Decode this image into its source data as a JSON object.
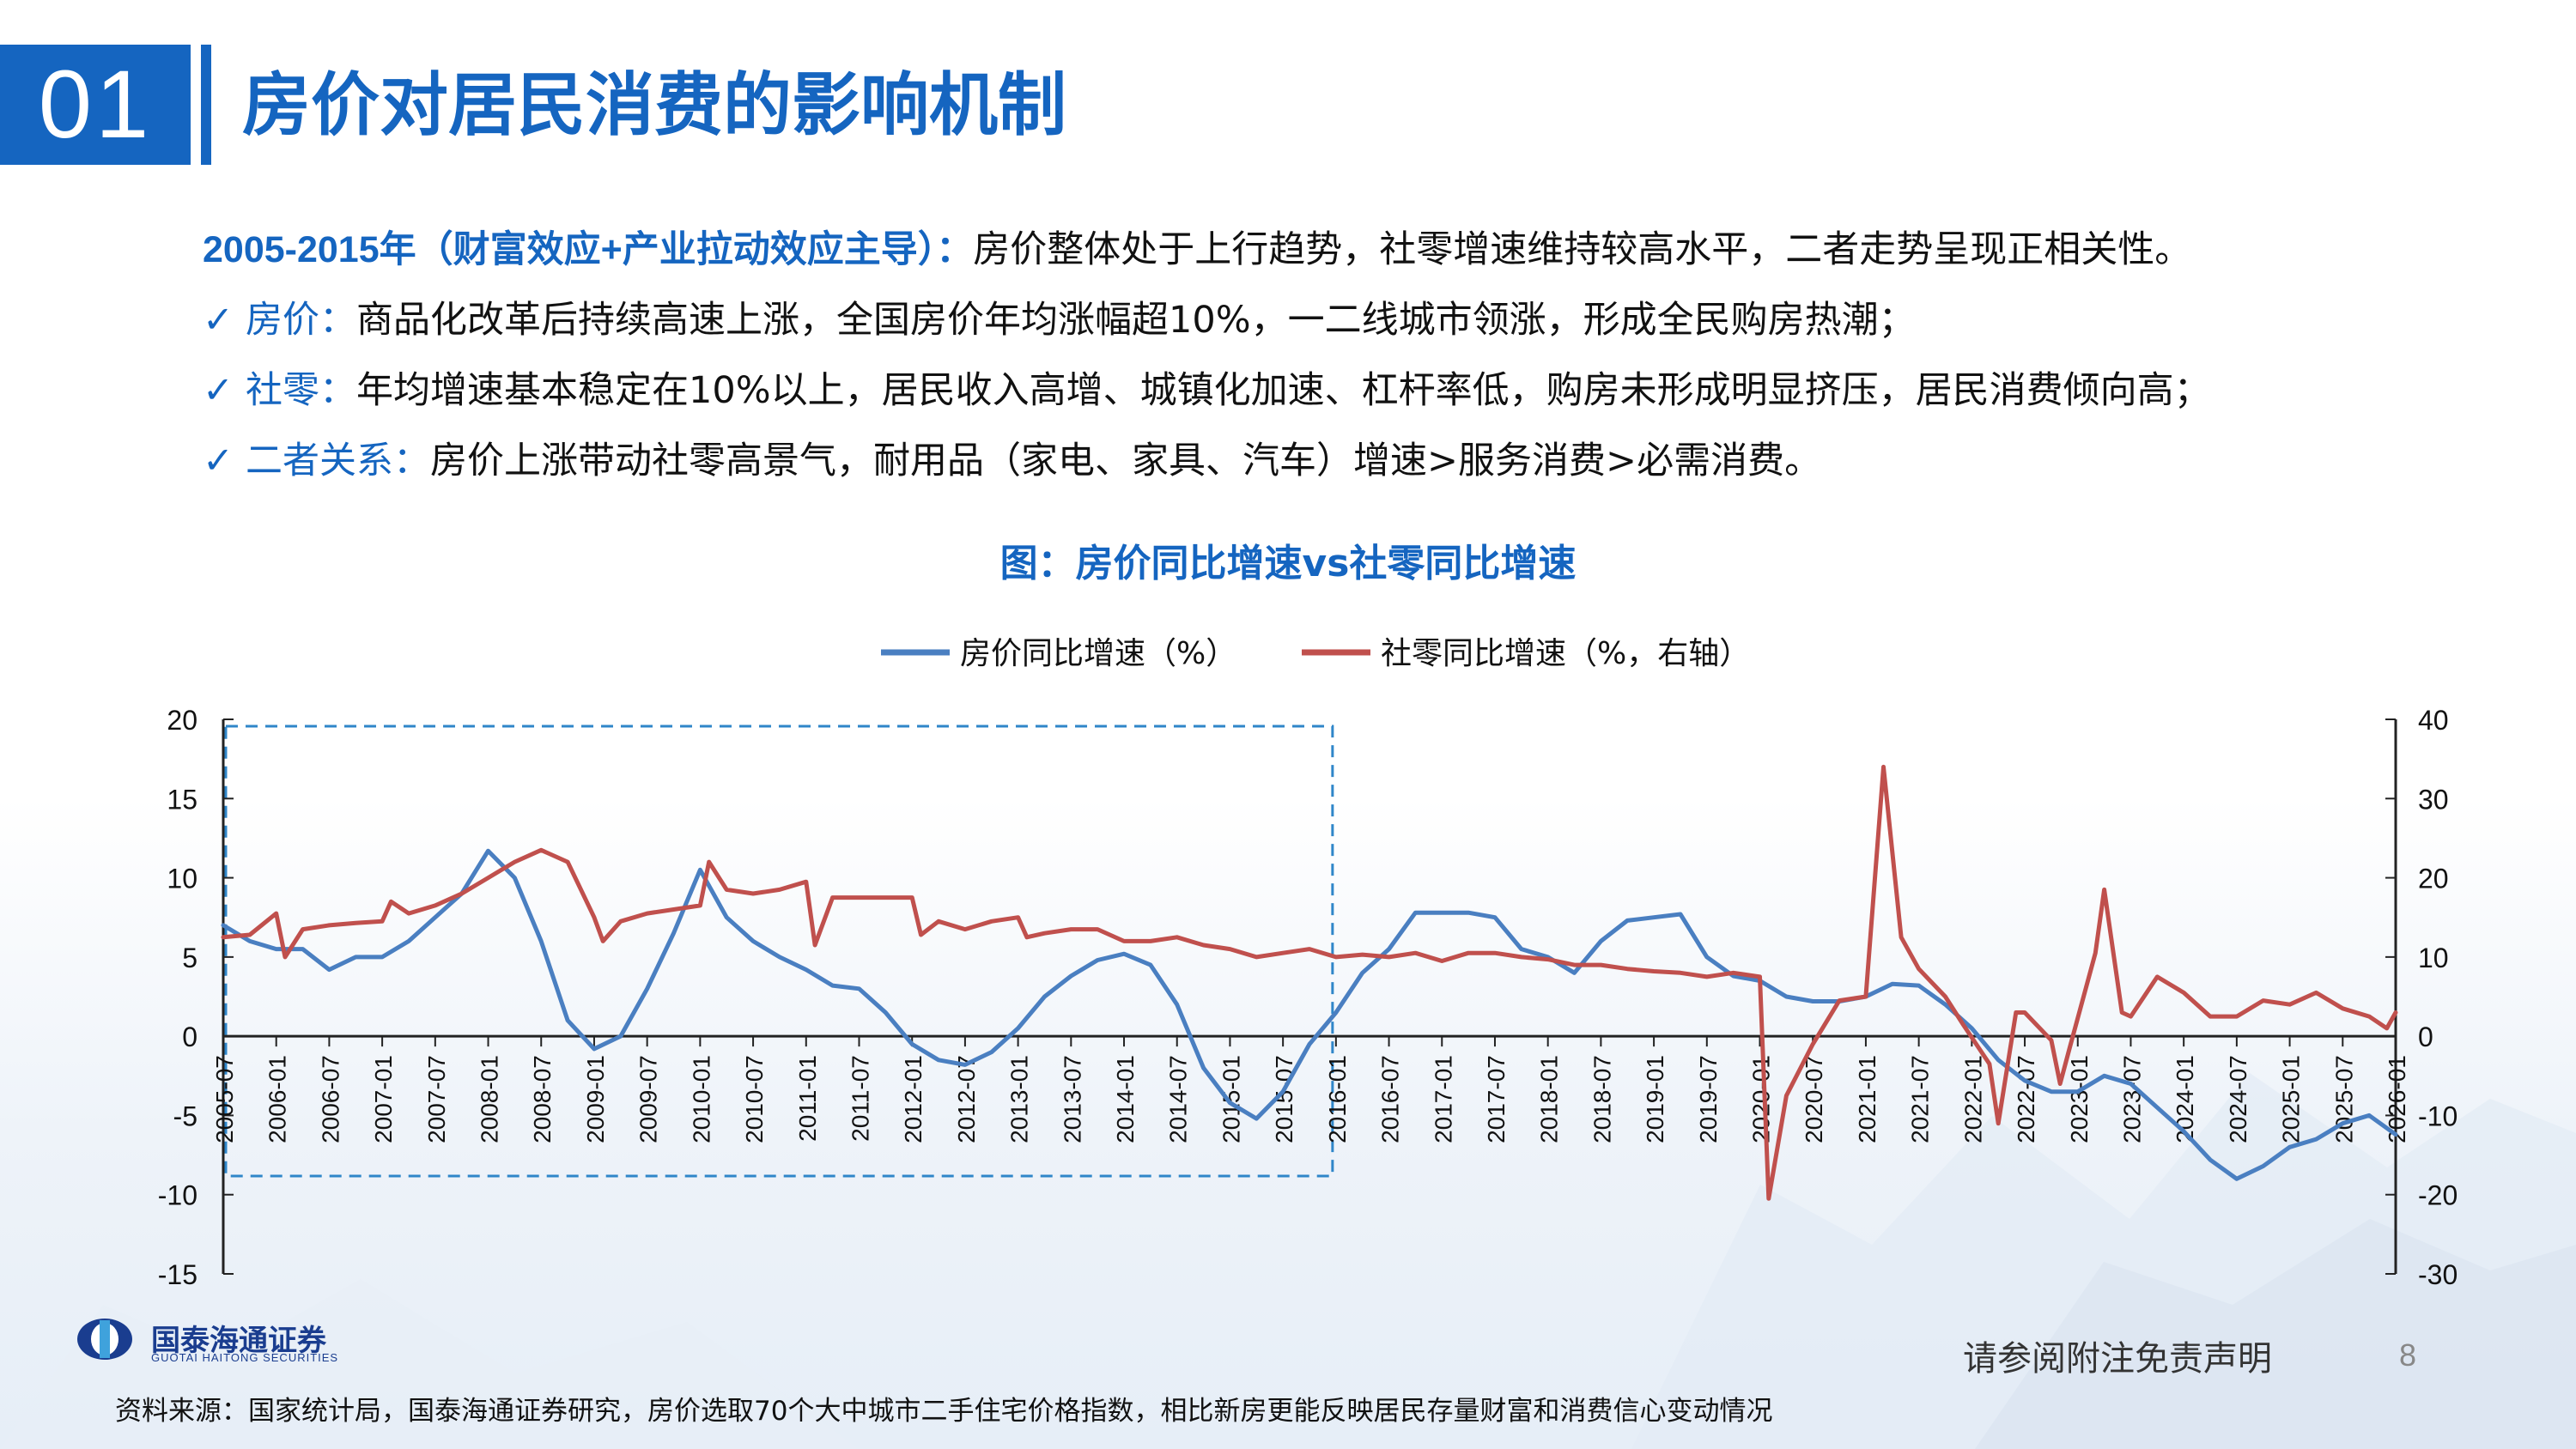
{
  "header": {
    "number": "01",
    "title": "房价对居民消费的影响机制"
  },
  "bullets": {
    "lead": {
      "label": "2005-2015年（财富效应+产业拉动效应主导）：",
      "text": "房价整体处于上行趋势，社零增速维持较高水平，二者走势呈现正相关性。"
    },
    "items": [
      {
        "check": "✓",
        "label": "房价：",
        "text": "商品化改革后持续高速上涨，全国房价年均涨幅超10%，一二线城市领涨，形成全民购房热潮；"
      },
      {
        "check": "✓",
        "label": "社零：",
        "text": "年均增速基本稳定在10%以上，居民收入高增、城镇化加速、杠杆率低，购房未形成明显挤压，居民消费倾向高；"
      },
      {
        "check": "✓",
        "label": "二者关系：",
        "text": "房价上涨带动社零高景气，耐用品（家电、家具、汽车）增速>服务消费>必需消费。"
      }
    ]
  },
  "chart_data": {
    "type": "line",
    "title": "图：房价同比增速vs社零同比增速",
    "legend_position": "top-center",
    "grid": false,
    "y_left": {
      "ylim": [
        -15,
        20
      ],
      "ticks": [
        20,
        15,
        10,
        5,
        0,
        -5,
        -10,
        -15
      ]
    },
    "y_right": {
      "ylim": [
        -30,
        40
      ],
      "ticks": [
        40,
        30,
        20,
        10,
        0,
        -10,
        -20,
        -30
      ]
    },
    "x_ticks": [
      "2005-07",
      "2006-01",
      "2006-07",
      "2007-01",
      "2007-07",
      "2008-01",
      "2008-07",
      "2009-01",
      "2009-07",
      "2010-01",
      "2010-07",
      "2011-01",
      "2011-07",
      "2012-01",
      "2012-07",
      "2013-01",
      "2013-07",
      "2014-01",
      "2014-07",
      "2015-01",
      "2015-07",
      "2016-01",
      "2016-07",
      "2017-01",
      "2017-07",
      "2018-01",
      "2018-07",
      "2019-01",
      "2019-07",
      "2020-01",
      "2020-07",
      "2021-01",
      "2021-07",
      "2022-01",
      "2022-07",
      "2023-01",
      "2023-07",
      "2024-01",
      "2024-07",
      "2025-01",
      "2025-07",
      "2026-01"
    ],
    "highlight_range": [
      "2005-07",
      "2016-01"
    ],
    "series": [
      {
        "name": "房价同比增速（%）",
        "axis": "left",
        "color": "#4a7fc1",
        "points": [
          [
            "2005-07",
            7.0
          ],
          [
            "2005-10",
            6.0
          ],
          [
            "2006-01",
            5.5
          ],
          [
            "2006-04",
            5.5
          ],
          [
            "2006-07",
            4.2
          ],
          [
            "2006-10",
            5.0
          ],
          [
            "2007-01",
            5.0
          ],
          [
            "2007-04",
            6.0
          ],
          [
            "2007-07",
            7.5
          ],
          [
            "2007-10",
            9.0
          ],
          [
            "2008-01",
            11.7
          ],
          [
            "2008-04",
            10.0
          ],
          [
            "2008-07",
            6.0
          ],
          [
            "2008-10",
            1.0
          ],
          [
            "2009-01",
            -0.8
          ],
          [
            "2009-04",
            0.0
          ],
          [
            "2009-07",
            3.0
          ],
          [
            "2009-10",
            6.5
          ],
          [
            "2010-01",
            10.5
          ],
          [
            "2010-04",
            7.5
          ],
          [
            "2010-07",
            6.0
          ],
          [
            "2010-10",
            5.0
          ],
          [
            "2011-01",
            4.2
          ],
          [
            "2011-04",
            3.2
          ],
          [
            "2011-07",
            3.0
          ],
          [
            "2011-10",
            1.5
          ],
          [
            "2012-01",
            -0.5
          ],
          [
            "2012-04",
            -1.5
          ],
          [
            "2012-07",
            -1.8
          ],
          [
            "2012-10",
            -1.0
          ],
          [
            "2013-01",
            0.5
          ],
          [
            "2013-04",
            2.5
          ],
          [
            "2013-07",
            3.8
          ],
          [
            "2013-10",
            4.8
          ],
          [
            "2014-01",
            5.2
          ],
          [
            "2014-04",
            4.5
          ],
          [
            "2014-07",
            2.0
          ],
          [
            "2014-10",
            -2.0
          ],
          [
            "2015-01",
            -4.2
          ],
          [
            "2015-04",
            -5.2
          ],
          [
            "2015-07",
            -3.5
          ],
          [
            "2015-10",
            -0.5
          ],
          [
            "2016-01",
            1.5
          ],
          [
            "2016-04",
            4.0
          ],
          [
            "2016-07",
            5.5
          ],
          [
            "2016-10",
            7.8
          ],
          [
            "2017-01",
            7.8
          ],
          [
            "2017-04",
            7.8
          ],
          [
            "2017-07",
            7.5
          ],
          [
            "2017-10",
            5.5
          ],
          [
            "2018-01",
            5.0
          ],
          [
            "2018-04",
            4.0
          ],
          [
            "2018-07",
            6.0
          ],
          [
            "2018-10",
            7.3
          ],
          [
            "2019-01",
            7.5
          ],
          [
            "2019-04",
            7.7
          ],
          [
            "2019-07",
            5.0
          ],
          [
            "2019-10",
            3.8
          ],
          [
            "2020-01",
            3.5
          ],
          [
            "2020-04",
            2.5
          ],
          [
            "2020-07",
            2.2
          ],
          [
            "2020-10",
            2.2
          ],
          [
            "2021-01",
            2.5
          ],
          [
            "2021-04",
            3.3
          ],
          [
            "2021-07",
            3.2
          ],
          [
            "2021-10",
            2.0
          ],
          [
            "2022-01",
            0.5
          ],
          [
            "2022-04",
            -1.5
          ],
          [
            "2022-07",
            -2.8
          ],
          [
            "2022-10",
            -3.5
          ],
          [
            "2023-01",
            -3.5
          ],
          [
            "2023-04",
            -2.5
          ],
          [
            "2023-07",
            -3.0
          ],
          [
            "2023-10",
            -4.5
          ],
          [
            "2024-01",
            -6.0
          ],
          [
            "2024-04",
            -7.8
          ],
          [
            "2024-07",
            -9.0
          ],
          [
            "2024-10",
            -8.2
          ],
          [
            "2025-01",
            -7.0
          ],
          [
            "2025-04",
            -6.5
          ],
          [
            "2025-07",
            -5.5
          ],
          [
            "2025-10",
            -5.0
          ],
          [
            "2026-01",
            -6.2
          ]
        ]
      },
      {
        "name": "社零同比增速（%，右轴）",
        "axis": "right",
        "color": "#c0504d",
        "points": [
          [
            "2005-07",
            12.5
          ],
          [
            "2005-10",
            12.8
          ],
          [
            "2006-01",
            15.5
          ],
          [
            "2006-02",
            10.0
          ],
          [
            "2006-04",
            13.5
          ],
          [
            "2006-07",
            14.0
          ],
          [
            "2006-10",
            14.3
          ],
          [
            "2007-01",
            14.5
          ],
          [
            "2007-02",
            17.0
          ],
          [
            "2007-04",
            15.5
          ],
          [
            "2007-07",
            16.5
          ],
          [
            "2007-10",
            18.0
          ],
          [
            "2008-01",
            20.0
          ],
          [
            "2008-04",
            22.0
          ],
          [
            "2008-07",
            23.5
          ],
          [
            "2008-10",
            22.0
          ],
          [
            "2009-01",
            15.0
          ],
          [
            "2009-02",
            12.0
          ],
          [
            "2009-04",
            14.5
          ],
          [
            "2009-07",
            15.5
          ],
          [
            "2009-10",
            16.0
          ],
          [
            "2010-01",
            16.5
          ],
          [
            "2010-02",
            22.0
          ],
          [
            "2010-04",
            18.5
          ],
          [
            "2010-07",
            18.0
          ],
          [
            "2010-10",
            18.5
          ],
          [
            "2011-01",
            19.5
          ],
          [
            "2011-02",
            11.5
          ],
          [
            "2011-04",
            17.5
          ],
          [
            "2011-07",
            17.5
          ],
          [
            "2011-10",
            17.5
          ],
          [
            "2012-01",
            17.5
          ],
          [
            "2012-02",
            12.8
          ],
          [
            "2012-04",
            14.5
          ],
          [
            "2012-07",
            13.5
          ],
          [
            "2012-10",
            14.5
          ],
          [
            "2013-01",
            15.0
          ],
          [
            "2013-02",
            12.5
          ],
          [
            "2013-04",
            13.0
          ],
          [
            "2013-07",
            13.5
          ],
          [
            "2013-10",
            13.5
          ],
          [
            "2014-01",
            12.0
          ],
          [
            "2014-04",
            12.0
          ],
          [
            "2014-07",
            12.5
          ],
          [
            "2014-10",
            11.5
          ],
          [
            "2015-01",
            11.0
          ],
          [
            "2015-04",
            10.0
          ],
          [
            "2015-07",
            10.5
          ],
          [
            "2015-10",
            11.0
          ],
          [
            "2016-01",
            10.0
          ],
          [
            "2016-04",
            10.3
          ],
          [
            "2016-07",
            10.0
          ],
          [
            "2016-10",
            10.5
          ],
          [
            "2017-01",
            9.5
          ],
          [
            "2017-04",
            10.5
          ],
          [
            "2017-07",
            10.5
          ],
          [
            "2017-10",
            10.0
          ],
          [
            "2018-01",
            9.7
          ],
          [
            "2018-04",
            9.0
          ],
          [
            "2018-07",
            9.0
          ],
          [
            "2018-10",
            8.5
          ],
          [
            "2019-01",
            8.2
          ],
          [
            "2019-04",
            8.0
          ],
          [
            "2019-07",
            7.5
          ],
          [
            "2019-10",
            8.0
          ],
          [
            "2020-01",
            7.5
          ],
          [
            "2020-02",
            -20.5
          ],
          [
            "2020-04",
            -7.5
          ],
          [
            "2020-07",
            -1.0
          ],
          [
            "2020-10",
            4.5
          ],
          [
            "2021-01",
            5.0
          ],
          [
            "2021-03",
            34.0
          ],
          [
            "2021-05",
            12.5
          ],
          [
            "2021-07",
            8.5
          ],
          [
            "2021-10",
            5.0
          ],
          [
            "2021-12",
            1.5
          ],
          [
            "2022-03",
            -3.5
          ],
          [
            "2022-04",
            -11.0
          ],
          [
            "2022-06",
            3.0
          ],
          [
            "2022-07",
            3.0
          ],
          [
            "2022-10",
            -0.5
          ],
          [
            "2022-11",
            -6.0
          ],
          [
            "2022-12",
            -1.8
          ],
          [
            "2023-03",
            10.5
          ],
          [
            "2023-04",
            18.5
          ],
          [
            "2023-06",
            3.0
          ],
          [
            "2023-07",
            2.5
          ],
          [
            "2023-10",
            7.5
          ],
          [
            "2024-01",
            5.5
          ],
          [
            "2024-04",
            2.5
          ],
          [
            "2024-07",
            2.5
          ],
          [
            "2024-10",
            4.5
          ],
          [
            "2025-01",
            4.0
          ],
          [
            "2025-04",
            5.5
          ],
          [
            "2025-07",
            3.5
          ],
          [
            "2025-10",
            2.5
          ],
          [
            "2025-12",
            1.0
          ],
          [
            "2026-01",
            3.0
          ]
        ]
      }
    ]
  },
  "footer": {
    "logo_cn": "国泰海通证券",
    "logo_en": "GUOTAI HAITONG SECURITIES",
    "disclaimer": "请参阅附注免责声明",
    "page_number": "8",
    "source": "资料来源：国家统计局，国泰海通证券研究，房价选取70个大中城市二手住宅价格指数，相比新房更能反映居民存量财富和消费信心变动情况"
  },
  "colors": {
    "accent": "#1565c0",
    "house_line": "#4a7fc1",
    "retail_line": "#c0504d"
  }
}
